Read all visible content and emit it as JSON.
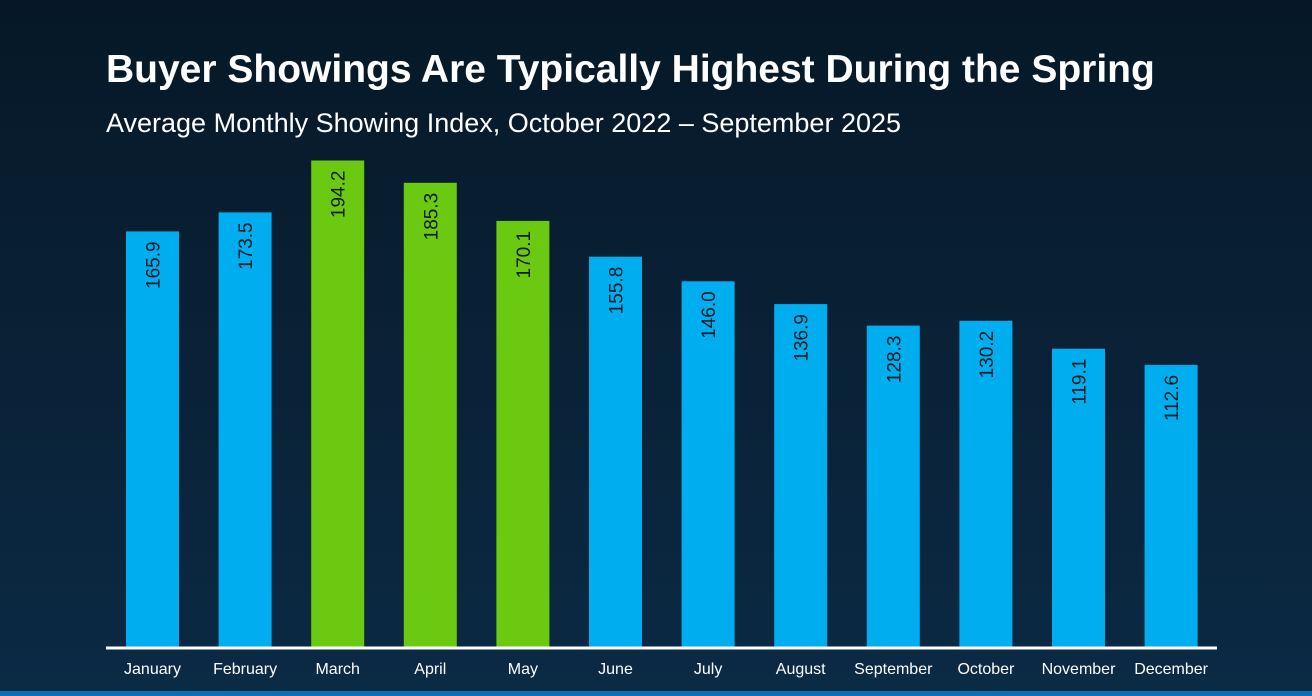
{
  "colors": {
    "background": "#071c2e",
    "default_bar": "#00AEEF",
    "highlight_bar": "#6CC911",
    "axis_line": "#ffffff",
    "bar_label": "#0d1b24",
    "bottom_strip": "#0a6fb3"
  },
  "chart_data": {
    "type": "bar",
    "title": "Buyer Showings Are Typically Highest During the Spring",
    "subtitle": "Average Monthly Showing Index, October 2022 – September 2025",
    "xlabel": "",
    "ylabel": "",
    "ylim": [
      0,
      200
    ],
    "grid": false,
    "legend": "none",
    "categories": [
      "January",
      "February",
      "March",
      "April",
      "May",
      "June",
      "July",
      "August",
      "September",
      "October",
      "November",
      "December"
    ],
    "values": [
      165.9,
      173.5,
      194.2,
      185.3,
      170.1,
      155.8,
      146.0,
      136.9,
      128.3,
      130.2,
      119.1,
      112.6
    ],
    "labels": [
      "165.9",
      "173.5",
      "194.2",
      "185.3",
      "170.1",
      "155.8",
      "146.0",
      "136.9",
      "128.3",
      "130.2",
      "119.1",
      "112.6"
    ],
    "highlighted": [
      false,
      false,
      true,
      true,
      true,
      false,
      false,
      false,
      false,
      false,
      false,
      false
    ],
    "highlight_meaning": "Spring months"
  }
}
